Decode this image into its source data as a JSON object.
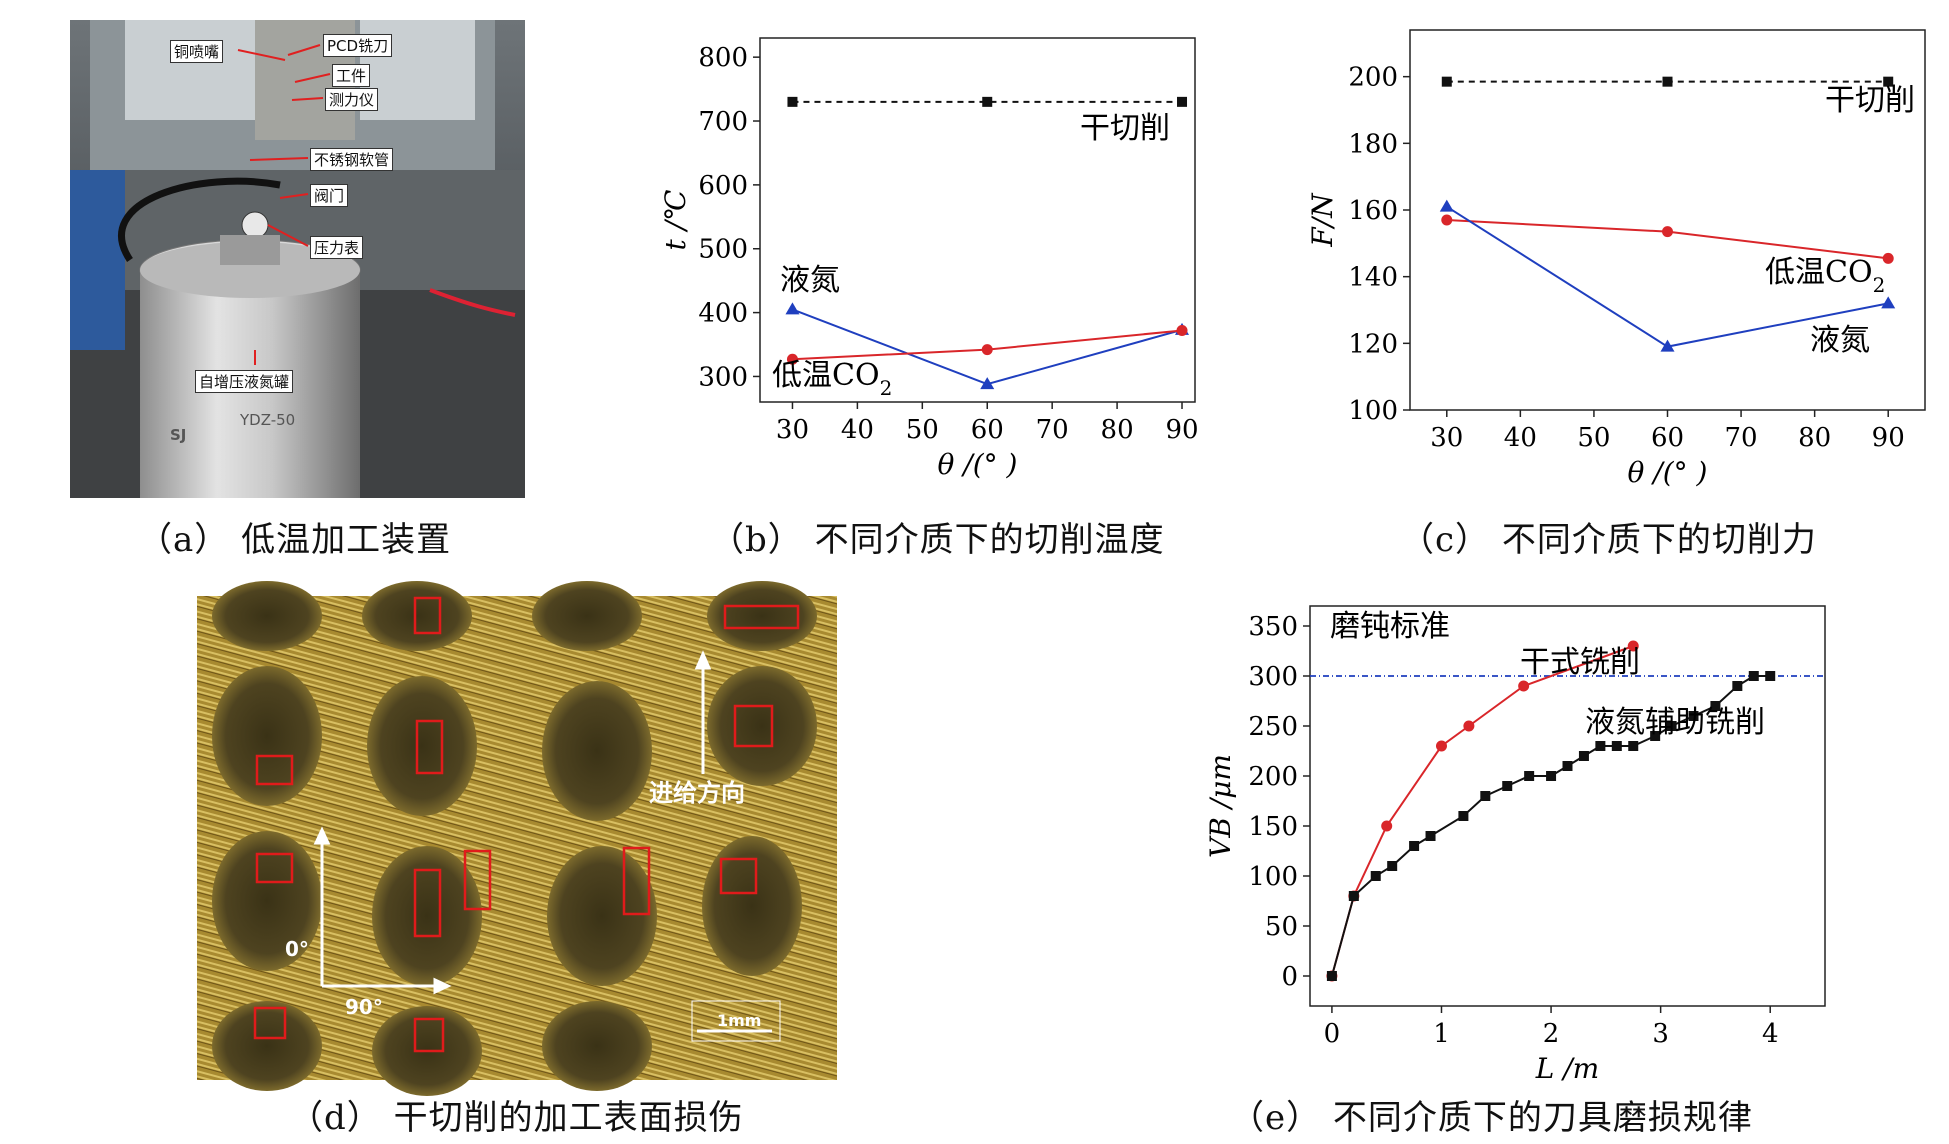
{
  "captions": {
    "a": "（a）  低温加工装置",
    "b": "（b）  不同介质下的切削温度",
    "c": "（c）  不同介质下的切削力",
    "d": "（d）  干切削的加工表面损伤",
    "e": "（e）  不同介质下的刀具磨损规律"
  },
  "photo_a": {
    "labels": [
      "铜喷嘴",
      "PCD铣刀",
      "工件",
      "测力仪",
      "不锈钢软管",
      "阀门",
      "压力表",
      "自增压液氮罐"
    ],
    "tank_text": [
      "SJ",
      "YDZ-50"
    ]
  },
  "photo_d": {
    "feed_label": "进给方向",
    "angle_0": "0°",
    "angle_90": "90°",
    "scale_label": "1mm"
  },
  "chart_data": [
    {
      "id": "b",
      "type": "line",
      "x": [
        30,
        60,
        90
      ],
      "xlim": [
        25,
        92
      ],
      "ylim": [
        260,
        830
      ],
      "xticks": [
        "30",
        "40",
        "50",
        "60",
        "70",
        "80",
        "90"
      ],
      "yticks": [
        "300",
        "400",
        "500",
        "600",
        "700",
        "800"
      ],
      "xlabel": "θ /(° )",
      "ylabel": "t /℃",
      "series": [
        {
          "name": "干切削",
          "values": [
            730,
            730,
            730
          ],
          "color": "#111111",
          "dash": true,
          "marker": "square"
        },
        {
          "name": "液氮",
          "values": [
            405,
            288,
            373
          ],
          "color": "#1f3fbf",
          "marker": "triangle"
        },
        {
          "name": "低温CO2",
          "values": [
            327,
            342,
            372
          ],
          "color": "#d9262a",
          "marker": "circle"
        }
      ]
    },
    {
      "id": "c",
      "type": "line",
      "x": [
        30,
        60,
        90
      ],
      "xlim": [
        25,
        95
      ],
      "ylim": [
        100,
        214
      ],
      "xticks": [
        "30",
        "40",
        "50",
        "60",
        "70",
        "80",
        "90"
      ],
      "yticks": [
        "100",
        "120",
        "140",
        "160",
        "180",
        "200"
      ],
      "xlabel": "θ /(° )",
      "ylabel": "F/N",
      "series": [
        {
          "name": "干切削",
          "values": [
            198.5,
            198.5,
            198.5
          ],
          "color": "#111111",
          "dash": true,
          "marker": "square"
        },
        {
          "name": "低温CO2",
          "values": [
            157,
            153.5,
            145.5
          ],
          "color": "#d9262a",
          "marker": "circle"
        },
        {
          "name": "液氮",
          "values": [
            161,
            119,
            132
          ],
          "color": "#1f3fbf",
          "marker": "triangle"
        }
      ]
    },
    {
      "id": "e",
      "type": "line",
      "xlim": [
        -0.2,
        4.5
      ],
      "ylim": [
        -30,
        370
      ],
      "xticks": [
        "0",
        "1",
        "2",
        "3",
        "4"
      ],
      "yticks": [
        "0",
        "50",
        "100",
        "150",
        "200",
        "250",
        "300",
        "350"
      ],
      "xlabel": "L /m",
      "ylabel": "VB /μm",
      "threshold": {
        "name": "磨钝标准",
        "value": 300,
        "color": "#1f3fbf"
      },
      "series": [
        {
          "name": "干式铣削",
          "color": "#d9262a",
          "marker": "circle",
          "x": [
            0,
            0.2,
            0.5,
            1.0,
            1.25,
            1.75,
            2.75
          ],
          "values": [
            0,
            80,
            150,
            230,
            250,
            290,
            330
          ]
        },
        {
          "name": "液氮辅助铣削",
          "color": "#111111",
          "marker": "square",
          "x": [
            0,
            0.2,
            0.4,
            0.55,
            0.75,
            0.9,
            1.2,
            1.4,
            1.6,
            1.8,
            2.0,
            2.15,
            2.3,
            2.45,
            2.6,
            2.75,
            2.95,
            3.1,
            3.3,
            3.5,
            3.7,
            3.85,
            4.0
          ],
          "values": [
            0,
            80,
            100,
            110,
            130,
            140,
            160,
            180,
            190,
            200,
            200,
            210,
            220,
            230,
            230,
            230,
            240,
            250,
            260,
            270,
            290,
            300,
            300
          ]
        }
      ]
    }
  ]
}
